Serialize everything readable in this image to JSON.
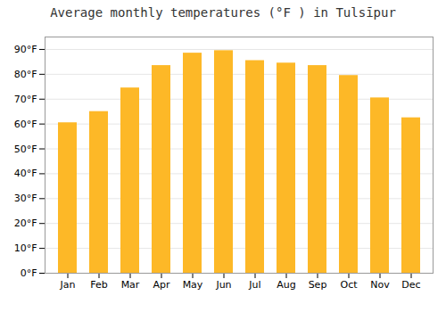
{
  "chart_data": {
    "type": "bar",
    "title": "Average monthly temperatures (°F ) in Tulsīpur",
    "categories": [
      "Jan",
      "Feb",
      "Mar",
      "Apr",
      "May",
      "Jun",
      "Jul",
      "Aug",
      "Sep",
      "Oct",
      "Nov",
      "Dec"
    ],
    "values": [
      60.5,
      65.0,
      74.5,
      83.5,
      88.5,
      89.5,
      85.5,
      84.5,
      83.5,
      79.5,
      70.5,
      62.5
    ],
    "color": "#FDB827",
    "ylim": [
      0,
      95
    ],
    "yticks": [
      {
        "value": 0,
        "label": "0°F"
      },
      {
        "value": 10,
        "label": "10°F"
      },
      {
        "value": 20,
        "label": "20°F"
      },
      {
        "value": 30,
        "label": "30°F"
      },
      {
        "value": 40,
        "label": "40°F"
      },
      {
        "value": 50,
        "label": "50°F"
      },
      {
        "value": 60,
        "label": "60°F"
      },
      {
        "value": 70,
        "label": "70°F"
      },
      {
        "value": 80,
        "label": "80°F"
      },
      {
        "value": 90,
        "label": "90°F"
      }
    ],
    "grid": true
  }
}
